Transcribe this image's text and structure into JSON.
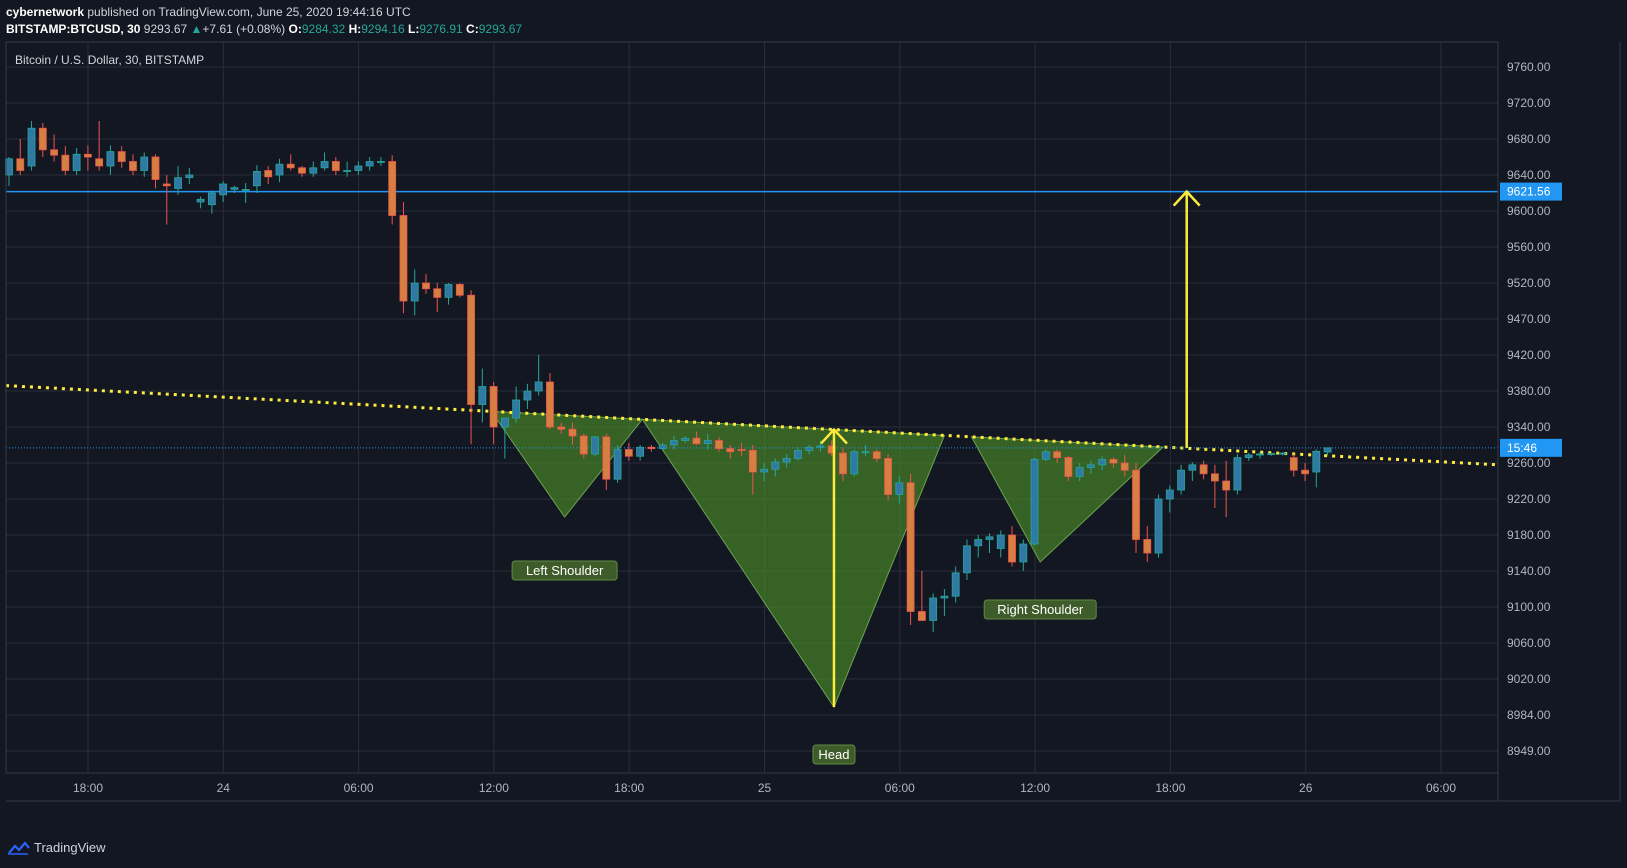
{
  "header": {
    "user": "cybernetwork",
    "published_text": "published on TradingView.com, June 25, 2020 19:44:16 UTC",
    "symbol": "BITSTAMP:BTCUSD, 30",
    "last": "9293.67",
    "change": "+7.61 (+0.08%)",
    "o_label": "O:",
    "o_value": "9284.32",
    "h_label": "H:",
    "h_value": "9294.16",
    "l_label": "L:",
    "l_value": "9276.91",
    "c_label": "C:",
    "c_value": "9293.67"
  },
  "footer": {
    "brand": "TradingView"
  },
  "colors": {
    "background": "#131722",
    "grid": "#2a2e39",
    "axis_text": "#b2b5be",
    "up": "#26a69a",
    "down": "#ef5350",
    "bar_up": "#3179a5",
    "bar_down": "#d58040",
    "trendline": "#ffeb3b",
    "resistance": "#2196f3",
    "pattern_fill": "#4c8a2a",
    "label_bg": "#3e5c2a"
  },
  "chart_data": {
    "type": "candlestick",
    "title": "Bitcoin / U.S. Dollar, 30, BITSTAMP",
    "x_ticks": [
      "18:00",
      "24",
      "06:00",
      "12:00",
      "18:00",
      "25",
      "06:00",
      "12:00",
      "18:00",
      "26",
      "06:00"
    ],
    "y_ticks": [
      9760,
      9720,
      9680,
      9640,
      9600,
      9560,
      9520,
      9470,
      9420,
      9380,
      9340,
      9260,
      9220,
      9180,
      9140,
      9100,
      9060,
      9020,
      8984,
      8949
    ],
    "ylim": [
      8925,
      9790
    ],
    "resistance_level": {
      "value": 9621.56,
      "label": "9621.56"
    },
    "countdown_label": "15:46",
    "last_price": 9293.67,
    "annotations": [
      "Left Shoulder",
      "Head",
      "Right Shoulder"
    ],
    "candles": [
      {
        "o": 9640,
        "h": 9660,
        "l": 9628,
        "c": 9658
      },
      {
        "o": 9658,
        "h": 9680,
        "l": 9640,
        "c": 9645
      },
      {
        "o": 9650,
        "h": 9700,
        "l": 9645,
        "c": 9692
      },
      {
        "o": 9692,
        "h": 9698,
        "l": 9660,
        "c": 9668
      },
      {
        "o": 9668,
        "h": 9685,
        "l": 9655,
        "c": 9662
      },
      {
        "o": 9662,
        "h": 9672,
        "l": 9640,
        "c": 9645
      },
      {
        "o": 9645,
        "h": 9670,
        "l": 9640,
        "c": 9663
      },
      {
        "o": 9663,
        "h": 9673,
        "l": 9645,
        "c": 9660
      },
      {
        "o": 9658,
        "h": 9700,
        "l": 9645,
        "c": 9650
      },
      {
        "o": 9650,
        "h": 9673,
        "l": 9640,
        "c": 9666
      },
      {
        "o": 9666,
        "h": 9672,
        "l": 9648,
        "c": 9655
      },
      {
        "o": 9655,
        "h": 9663,
        "l": 9640,
        "c": 9645
      },
      {
        "o": 9645,
        "h": 9665,
        "l": 9638,
        "c": 9660
      },
      {
        "o": 9660,
        "h": 9663,
        "l": 9625,
        "c": 9635
      },
      {
        "o": 9630,
        "h": 9640,
        "l": 9585,
        "c": 9628
      },
      {
        "o": 9625,
        "h": 9650,
        "l": 9618,
        "c": 9637
      },
      {
        "o": 9637,
        "h": 9648,
        "l": 9630,
        "c": 9640
      },
      {
        "o": 9610,
        "h": 9616,
        "l": 9603,
        "c": 9613
      },
      {
        "o": 9607,
        "h": 9623,
        "l": 9597,
        "c": 9620
      },
      {
        "o": 9618,
        "h": 9633,
        "l": 9610,
        "c": 9630
      },
      {
        "o": 9624,
        "h": 9628,
        "l": 9620,
        "c": 9626
      },
      {
        "o": 9624,
        "h": 9631,
        "l": 9609,
        "c": 9624
      },
      {
        "o": 9628,
        "h": 9651,
        "l": 9620,
        "c": 9644
      },
      {
        "o": 9645,
        "h": 9650,
        "l": 9630,
        "c": 9638
      },
      {
        "o": 9640,
        "h": 9658,
        "l": 9632,
        "c": 9652
      },
      {
        "o": 9652,
        "h": 9663,
        "l": 9645,
        "c": 9648
      },
      {
        "o": 9648,
        "h": 9650,
        "l": 9638,
        "c": 9642
      },
      {
        "o": 9642,
        "h": 9655,
        "l": 9638,
        "c": 9648
      },
      {
        "o": 9648,
        "h": 9665,
        "l": 9645,
        "c": 9655
      },
      {
        "o": 9655,
        "h": 9660,
        "l": 9640,
        "c": 9645
      },
      {
        "o": 9645,
        "h": 9655,
        "l": 9638,
        "c": 9645
      },
      {
        "o": 9645,
        "h": 9655,
        "l": 9640,
        "c": 9650
      },
      {
        "o": 9650,
        "h": 9660,
        "l": 9645,
        "c": 9655
      },
      {
        "o": 9655,
        "h": 9660,
        "l": 9650,
        "c": 9655
      },
      {
        "o": 9655,
        "h": 9662,
        "l": 9585,
        "c": 9595
      },
      {
        "o": 9595,
        "h": 9610,
        "l": 9478,
        "c": 9495
      },
      {
        "o": 9495,
        "h": 9535,
        "l": 9475,
        "c": 9520
      },
      {
        "o": 9520,
        "h": 9530,
        "l": 9505,
        "c": 9512
      },
      {
        "o": 9512,
        "h": 9520,
        "l": 9480,
        "c": 9500
      },
      {
        "o": 9500,
        "h": 9520,
        "l": 9490,
        "c": 9518
      },
      {
        "o": 9518,
        "h": 9520,
        "l": 9500,
        "c": 9503
      },
      {
        "o": 9503,
        "h": 9510,
        "l": 9302,
        "c": 9365
      },
      {
        "o": 9365,
        "h": 9405,
        "l": 9345,
        "c": 9385
      },
      {
        "o": 9385,
        "h": 9390,
        "l": 9302,
        "c": 9340
      },
      {
        "o": 9340,
        "h": 9350,
        "l": 9270,
        "c": 9350
      },
      {
        "o": 9350,
        "h": 9385,
        "l": 9345,
        "c": 9370
      },
      {
        "o": 9370,
        "h": 9388,
        "l": 9360,
        "c": 9380
      },
      {
        "o": 9380,
        "h": 9420,
        "l": 9375,
        "c": 9390
      },
      {
        "o": 9390,
        "h": 9400,
        "l": 9335,
        "c": 9340
      },
      {
        "o": 9340,
        "h": 9345,
        "l": 9325,
        "c": 9335
      },
      {
        "o": 9335,
        "h": 9345,
        "l": 9300,
        "c": 9320
      },
      {
        "o": 9320,
        "h": 9325,
        "l": 9270,
        "c": 9280
      },
      {
        "o": 9280,
        "h": 9320,
        "l": 9275,
        "c": 9318
      },
      {
        "o": 9318,
        "h": 9325,
        "l": 9230,
        "c": 9242
      },
      {
        "o": 9242,
        "h": 9300,
        "l": 9238,
        "c": 9290
      },
      {
        "o": 9290,
        "h": 9305,
        "l": 9265,
        "c": 9275
      },
      {
        "o": 9275,
        "h": 9300,
        "l": 9265,
        "c": 9295
      },
      {
        "o": 9295,
        "h": 9300,
        "l": 9285,
        "c": 9292
      },
      {
        "o": 9292,
        "h": 9305,
        "l": 9288,
        "c": 9300
      },
      {
        "o": 9300,
        "h": 9320,
        "l": 9290,
        "c": 9310
      },
      {
        "o": 9310,
        "h": 9320,
        "l": 9305,
        "c": 9315
      },
      {
        "o": 9315,
        "h": 9330,
        "l": 9300,
        "c": 9303
      },
      {
        "o": 9303,
        "h": 9325,
        "l": 9290,
        "c": 9310
      },
      {
        "o": 9310,
        "h": 9318,
        "l": 9285,
        "c": 9292
      },
      {
        "o": 9292,
        "h": 9300,
        "l": 9270,
        "c": 9285
      },
      {
        "o": 9290,
        "h": 9305,
        "l": 9275,
        "c": 9288
      },
      {
        "o": 9288,
        "h": 9300,
        "l": 9225,
        "c": 9250
      },
      {
        "o": 9250,
        "h": 9260,
        "l": 9240,
        "c": 9253
      },
      {
        "o": 9253,
        "h": 9270,
        "l": 9245,
        "c": 9262
      },
      {
        "o": 9262,
        "h": 9280,
        "l": 9255,
        "c": 9270
      },
      {
        "o": 9270,
        "h": 9295,
        "l": 9265,
        "c": 9288
      },
      {
        "o": 9288,
        "h": 9300,
        "l": 9280,
        "c": 9295
      },
      {
        "o": 9295,
        "h": 9310,
        "l": 9285,
        "c": 9298
      },
      {
        "o": 9298,
        "h": 9310,
        "l": 9275,
        "c": 9282
      },
      {
        "o": 9282,
        "h": 9295,
        "l": 9240,
        "c": 9248
      },
      {
        "o": 9248,
        "h": 9290,
        "l": 9245,
        "c": 9285
      },
      {
        "o": 9285,
        "h": 9300,
        "l": 9275,
        "c": 9285
      },
      {
        "o": 9285,
        "h": 9290,
        "l": 9262,
        "c": 9270
      },
      {
        "o": 9270,
        "h": 9280,
        "l": 9218,
        "c": 9225
      },
      {
        "o": 9225,
        "h": 9245,
        "l": 9215,
        "c": 9238
      },
      {
        "o": 9238,
        "h": 9248,
        "l": 9080,
        "c": 9095
      },
      {
        "o": 9095,
        "h": 9140,
        "l": 9085,
        "c": 9085
      },
      {
        "o": 9085,
        "h": 9115,
        "l": 9072,
        "c": 9110
      },
      {
        "o": 9110,
        "h": 9120,
        "l": 9090,
        "c": 9112
      },
      {
        "o": 9112,
        "h": 9145,
        "l": 9105,
        "c": 9138
      },
      {
        "o": 9138,
        "h": 9175,
        "l": 9130,
        "c": 9168
      },
      {
        "o": 9168,
        "h": 9180,
        "l": 9155,
        "c": 9175
      },
      {
        "o": 9175,
        "h": 9182,
        "l": 9160,
        "c": 9178
      },
      {
        "o": 9165,
        "h": 9185,
        "l": 9155,
        "c": 9180
      },
      {
        "o": 9180,
        "h": 9190,
        "l": 9145,
        "c": 9150
      },
      {
        "o": 9150,
        "h": 9175,
        "l": 9140,
        "c": 9170
      },
      {
        "o": 9170,
        "h": 9272,
        "l": 9168,
        "c": 9268
      },
      {
        "o": 9268,
        "h": 9290,
        "l": 9265,
        "c": 9285
      },
      {
        "o": 9285,
        "h": 9290,
        "l": 9260,
        "c": 9272
      },
      {
        "o": 9272,
        "h": 9275,
        "l": 9240,
        "c": 9245
      },
      {
        "o": 9245,
        "h": 9260,
        "l": 9240,
        "c": 9255
      },
      {
        "o": 9255,
        "h": 9265,
        "l": 9248,
        "c": 9258
      },
      {
        "o": 9258,
        "h": 9275,
        "l": 9252,
        "c": 9268
      },
      {
        "o": 9268,
        "h": 9272,
        "l": 9255,
        "c": 9260
      },
      {
        "o": 9260,
        "h": 9278,
        "l": 9245,
        "c": 9252
      },
      {
        "o": 9252,
        "h": 9260,
        "l": 9160,
        "c": 9175
      },
      {
        "o": 9175,
        "h": 9190,
        "l": 9150,
        "c": 9160
      },
      {
        "o": 9160,
        "h": 9225,
        "l": 9155,
        "c": 9220
      },
      {
        "o": 9220,
        "h": 9235,
        "l": 9205,
        "c": 9230
      },
      {
        "o": 9230,
        "h": 9258,
        "l": 9225,
        "c": 9252
      },
      {
        "o": 9252,
        "h": 9262,
        "l": 9240,
        "c": 9258
      },
      {
        "o": 9258,
        "h": 9265,
        "l": 9242,
        "c": 9248
      },
      {
        "o": 9248,
        "h": 9258,
        "l": 9210,
        "c": 9240
      },
      {
        "o": 9240,
        "h": 9265,
        "l": 9200,
        "c": 9230
      },
      {
        "o": 9230,
        "h": 9280,
        "l": 9225,
        "c": 9272
      },
      {
        "o": 9272,
        "h": 9282,
        "l": 9265,
        "c": 9278
      },
      {
        "o": 9278,
        "h": 9285,
        "l": 9270,
        "c": 9280
      },
      {
        "o": 9280,
        "h": 9283,
        "l": 9276,
        "c": 9281
      },
      {
        "o": 9281,
        "h": 9284,
        "l": 9277,
        "c": 9282
      },
      {
        "o": 9272,
        "h": 9280,
        "l": 9245,
        "c": 9252
      },
      {
        "o": 9252,
        "h": 9260,
        "l": 9240,
        "c": 9248
      },
      {
        "o": 9250,
        "h": 9290,
        "l": 9233,
        "c": 9286
      },
      {
        "o": 9284.32,
        "h": 9294.16,
        "l": 9276.91,
        "c": 9293.67
      }
    ]
  }
}
